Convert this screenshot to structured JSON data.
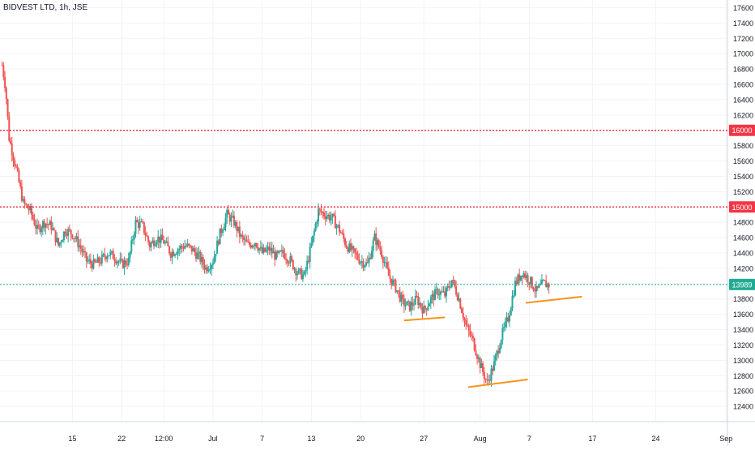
{
  "header": {
    "title": "BIDVEST LTD, 1h, JSE"
  },
  "chart_data": {
    "type": "candlestick",
    "title": "BIDVEST LTD, 1h, JSE",
    "ylim": [
      12200,
      17700
    ],
    "y_ticks": [
      17600,
      17400,
      17200,
      17000,
      16800,
      16600,
      16400,
      16200,
      16000,
      15800,
      15600,
      15400,
      15200,
      15000,
      14800,
      14600,
      14400,
      14200,
      14000,
      13800,
      13600,
      13400,
      13200,
      13000,
      12800,
      12600,
      12400
    ],
    "x_ticks": [
      {
        "label": "15",
        "t": 15
      },
      {
        "label": "22",
        "t": 22
      },
      {
        "label": "12:00",
        "t": 28
      },
      {
        "label": "Jul",
        "t": 35
      },
      {
        "label": "7",
        "t": 42
      },
      {
        "label": "13",
        "t": 49
      },
      {
        "label": "20",
        "t": 56
      },
      {
        "label": "27",
        "t": 65
      },
      {
        "label": "Aug",
        "t": 73
      },
      {
        "label": "7",
        "t": 80
      },
      {
        "label": "17",
        "t": 89
      },
      {
        "label": "24",
        "t": 98
      },
      {
        "label": "Sep",
        "t": 108
      }
    ],
    "price_path": [
      [
        5,
        16850
      ],
      [
        5.5,
        16550
      ],
      [
        6,
        15900
      ],
      [
        7,
        15500
      ],
      [
        8,
        15050
      ],
      [
        9,
        14950
      ],
      [
        10,
        14700
      ],
      [
        11,
        14800
      ],
      [
        12,
        14750
      ],
      [
        13,
        14500
      ],
      [
        14,
        14700
      ],
      [
        15,
        14650
      ],
      [
        16,
        14500
      ],
      [
        17,
        14300
      ],
      [
        18,
        14250
      ],
      [
        19,
        14300
      ],
      [
        20,
        14400
      ],
      [
        21,
        14350
      ],
      [
        22,
        14250
      ],
      [
        23,
        14300
      ],
      [
        24,
        14800
      ],
      [
        25,
        14750
      ],
      [
        26,
        14500
      ],
      [
        27,
        14600
      ],
      [
        28,
        14550
      ],
      [
        29,
        14400
      ],
      [
        30,
        14450
      ],
      [
        31,
        14500
      ],
      [
        32,
        14450
      ],
      [
        33,
        14350
      ],
      [
        34,
        14200
      ],
      [
        35,
        14300
      ],
      [
        36,
        14650
      ],
      [
        37,
        14900
      ],
      [
        38,
        14800
      ],
      [
        39,
        14600
      ],
      [
        40,
        14500
      ],
      [
        41,
        14550
      ],
      [
        42,
        14400
      ],
      [
        43,
        14450
      ],
      [
        44,
        14350
      ],
      [
        45,
        14400
      ],
      [
        46,
        14300
      ],
      [
        47,
        14150
      ],
      [
        48,
        14100
      ],
      [
        49,
        14500
      ],
      [
        50,
        14950
      ],
      [
        51,
        14900
      ],
      [
        52,
        14850
      ],
      [
        53,
        14700
      ],
      [
        54,
        14500
      ],
      [
        55,
        14400
      ],
      [
        56,
        14300
      ],
      [
        57,
        14250
      ],
      [
        58,
        14600
      ],
      [
        59,
        14400
      ],
      [
        60,
        14100
      ],
      [
        61,
        13950
      ],
      [
        62,
        13750
      ],
      [
        63,
        13700
      ],
      [
        64,
        13800
      ],
      [
        65,
        13650
      ],
      [
        66,
        13800
      ],
      [
        67,
        13900
      ],
      [
        68,
        13850
      ],
      [
        69,
        14050
      ],
      [
        70,
        13800
      ],
      [
        71,
        13450
      ],
      [
        72,
        13250
      ],
      [
        73,
        12950
      ],
      [
        74,
        12700
      ],
      [
        75,
        12950
      ],
      [
        76,
        13300
      ],
      [
        77,
        13550
      ],
      [
        78,
        14000
      ],
      [
        79,
        14150
      ],
      [
        80,
        14050
      ],
      [
        81,
        13900
      ],
      [
        82,
        14000
      ],
      [
        83,
        13980
      ]
    ],
    "horizontal_lines": [
      {
        "label": "16000",
        "value": 16000,
        "color": "#f23645",
        "style": "dotted"
      },
      {
        "label": "15000",
        "value": 15000,
        "color": "#f23645",
        "style": "dotted"
      },
      {
        "label": "13989",
        "value": 13989,
        "color": "#22ab94",
        "style": "dotted"
      }
    ],
    "trendlines": [
      {
        "from": [
          62.2,
          13520
        ],
        "to": [
          68.0,
          13560
        ],
        "color": "#f7931a"
      },
      {
        "from": [
          71.3,
          12650
        ],
        "to": [
          79.8,
          12750
        ],
        "color": "#f7931a"
      },
      {
        "from": [
          79.5,
          13750
        ],
        "to": [
          87.5,
          13830
        ],
        "color": "#f7931a"
      }
    ],
    "colors": {
      "up": "#26a69a",
      "down": "#ef5350",
      "grid": "#f0f3fa",
      "axis_text": "#131722"
    }
  }
}
